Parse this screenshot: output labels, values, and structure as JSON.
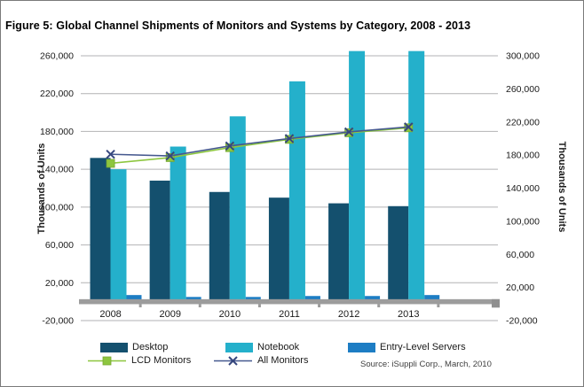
{
  "figure": {
    "title": "Figure 5: Global Channel Shipments of Monitors and Systems by Category, 2008 - 2013"
  },
  "source_note": "Source: iSuppli Corp., March, 2010",
  "chart_data": {
    "type": "bar",
    "subtype": "combo-bars-and-lines-dual-axis",
    "categories": [
      "2008",
      "2009",
      "2010",
      "2011",
      "2012",
      "2013"
    ],
    "bar_series": [
      {
        "name": "Desktop",
        "axis": "left",
        "color": "#14506e",
        "values": [
          152000,
          128000,
          116000,
          110000,
          104000,
          101000
        ]
      },
      {
        "name": "Notebook",
        "axis": "left",
        "color": "#24b0cb",
        "values": [
          140000,
          164000,
          196000,
          233000,
          265000,
          265000
        ]
      },
      {
        "name": "Entry-Level Servers",
        "axis": "left",
        "color": "#1d7dc4",
        "values": [
          7000,
          5000,
          5000,
          6000,
          6000,
          7000
        ]
      }
    ],
    "line_series": [
      {
        "name": "LCD Monitors",
        "axis": "right",
        "color": "#8dc63f",
        "marker": "square",
        "values": [
          170000,
          177000,
          189000,
          199000,
          207000,
          213000
        ]
      },
      {
        "name": "All Monitors",
        "axis": "right",
        "color": "#46598f",
        "marker": "x",
        "values": [
          181000,
          179000,
          191000,
          200000,
          208000,
          214000
        ]
      }
    ],
    "left_axis": {
      "title": "Thousands of Units",
      "min": -20000,
      "max": 260000,
      "step": 40000,
      "tick_labels": [
        "-20,000",
        "20,000",
        "60,000",
        "100,000",
        "140,000",
        "180,000",
        "220,000",
        "260,000"
      ]
    },
    "right_axis": {
      "title": "Thousands of Units",
      "min": -20000,
      "max": 300000,
      "step": 40000,
      "tick_labels": [
        "-20,000",
        "20,000",
        "60,000",
        "100,000",
        "140,000",
        "180,000",
        "220,000",
        "260,000",
        "300,000"
      ]
    },
    "gridlines": true,
    "legend_position": "bottom"
  }
}
